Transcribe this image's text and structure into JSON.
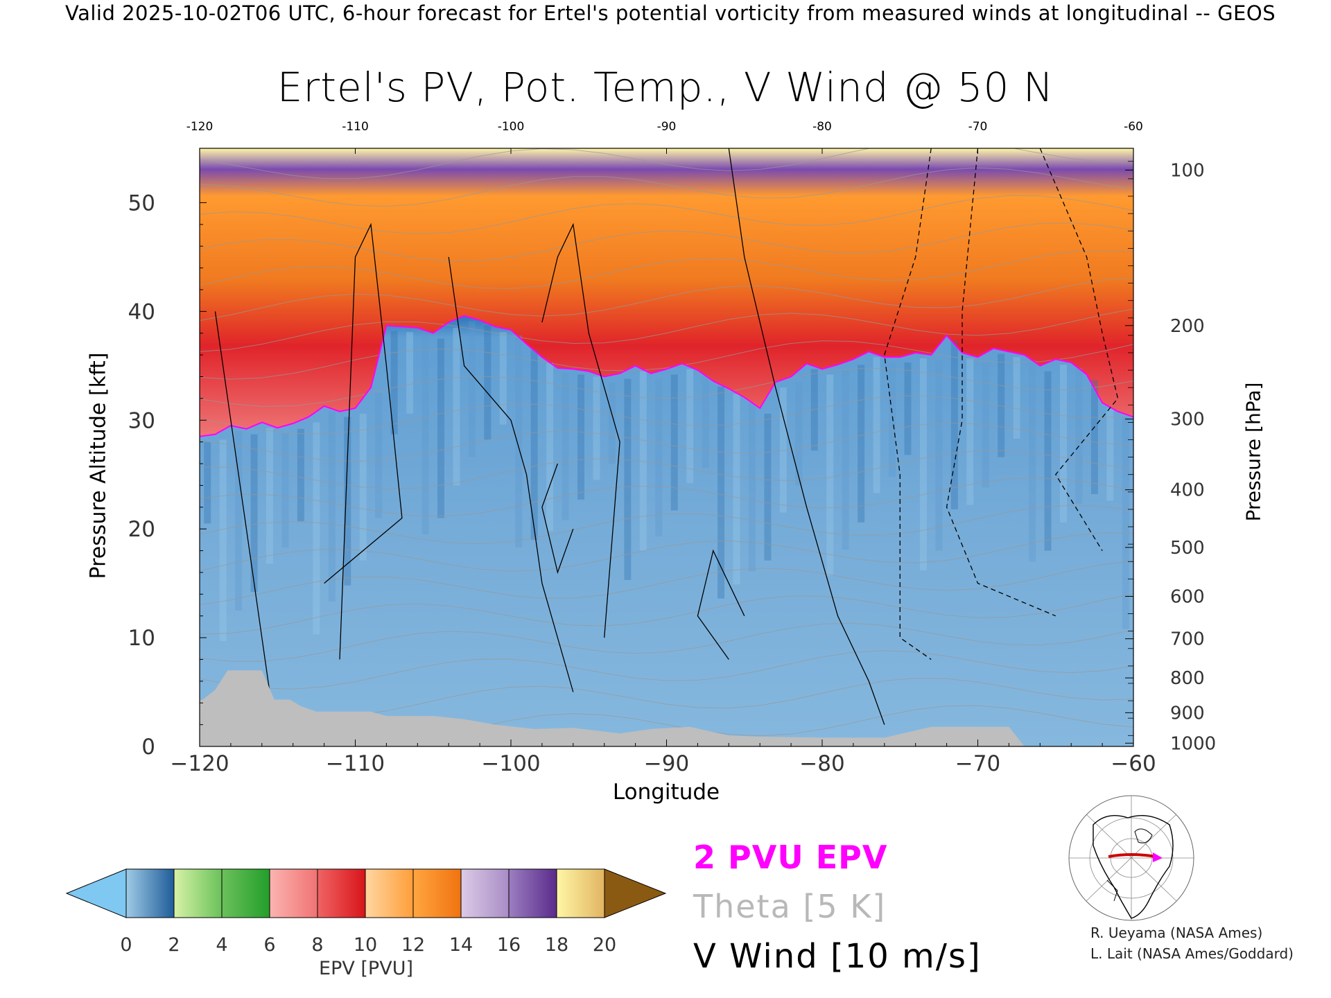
{
  "header": "Valid 2025-10-02T06 UTC, 6-hour forecast for Ertel's potential vorticity from measured winds at longitudinal -- GEOS",
  "title": "Ertel's PV, Pot. Temp., V Wind @ 50 N",
  "legend": {
    "epv_contour": "2 PVU EPV",
    "theta": "Theta [5 K]",
    "vwind": "V Wind [10 m/s]"
  },
  "credits": {
    "line1": "R. Ueyama (NASA Ames)",
    "line2": "L. Lait (NASA Ames/Goddard)"
  },
  "colors": {
    "epv_2pvu_contour": "#ff00ff",
    "theta_contour": "#b8b8b8",
    "vwind_contour": "#000000",
    "terrain": "#bebebe",
    "below_range": "#7ec8f2",
    "above_range": "#8b5a12"
  },
  "chart_data": {
    "type": "heatmap",
    "xlabel": "Longitude",
    "ylabel_left": "Pressure Altitude [kft]",
    "ylabel_right": "Pressure [hPa]",
    "xlim": [
      -120,
      -60
    ],
    "ylim": [
      0,
      55
    ],
    "x_ticks_bottom": [
      "−120",
      "−110",
      "−100",
      "−90",
      "−80",
      "−70",
      "−60"
    ],
    "x_ticks_top": [
      "-120",
      "-110",
      "-100",
      "-90",
      "-80",
      "-70",
      "-60"
    ],
    "y_ticks_left": [
      "0",
      "10",
      "20",
      "30",
      "40",
      "50"
    ],
    "pressure_ticks": [
      {
        "label": "100",
        "kft": 53
      },
      {
        "label": "200",
        "kft": 38.7
      },
      {
        "label": "300",
        "kft": 30.1
      },
      {
        "label": "400",
        "kft": 23.6
      },
      {
        "label": "500",
        "kft": 18.3
      },
      {
        "label": "600",
        "kft": 13.8
      },
      {
        "label": "700",
        "kft": 9.9
      },
      {
        "label": "800",
        "kft": 6.3
      },
      {
        "label": "900",
        "kft": 3.1
      },
      {
        "label": "1000",
        "kft": 0.3
      }
    ],
    "colorbar": {
      "label": "EPV [PVU]",
      "ticks": [
        "0",
        "2",
        "4",
        "6",
        "8",
        "10",
        "12",
        "14",
        "16",
        "18",
        "20"
      ],
      "bins": [
        {
          "from": 0,
          "to": 2,
          "colors": [
            "#9fcbe6",
            "#1f5c99"
          ]
        },
        {
          "from": 2,
          "to": 4,
          "colors": [
            "#d7f2a6",
            "#6ac25a"
          ]
        },
        {
          "from": 4,
          "to": 6,
          "colors": [
            "#6cc15b",
            "#229e2b"
          ]
        },
        {
          "from": 6,
          "to": 8,
          "colors": [
            "#fbb4b1",
            "#f07373"
          ]
        },
        {
          "from": 8,
          "to": 10,
          "colors": [
            "#f06464",
            "#d8141a"
          ]
        },
        {
          "from": 10,
          "to": 12,
          "colors": [
            "#ffd6a0",
            "#ff9e3a"
          ]
        },
        {
          "from": 12,
          "to": 14,
          "colors": [
            "#ffa640",
            "#f07310"
          ]
        },
        {
          "from": 14,
          "to": 16,
          "colors": [
            "#dccbe6",
            "#a98cc6"
          ]
        },
        {
          "from": 16,
          "to": 18,
          "colors": [
            "#9c7ec0",
            "#5a2b8c"
          ]
        },
        {
          "from": 18,
          "to": 20,
          "colors": [
            "#fff6a6",
            "#e1b461"
          ]
        }
      ]
    },
    "pv2_tropopause_kft": [
      [
        -120,
        28.5
      ],
      [
        -119,
        28.7
      ],
      [
        -118,
        29.5
      ],
      [
        -117,
        29.2
      ],
      [
        -116,
        29.8
      ],
      [
        -115,
        29.3
      ],
      [
        -114,
        29.7
      ],
      [
        -113,
        30.3
      ],
      [
        -112,
        31.3
      ],
      [
        -111,
        30.8
      ],
      [
        -110,
        31.1
      ],
      [
        -109,
        33.0
      ],
      [
        -108,
        38.7
      ],
      [
        -107,
        38.6
      ],
      [
        -106,
        38.5
      ],
      [
        -105,
        38.0
      ],
      [
        -104,
        39.0
      ],
      [
        -103,
        39.6
      ],
      [
        -102,
        39.2
      ],
      [
        -101,
        38.6
      ],
      [
        -100,
        38.3
      ],
      [
        -99,
        37.0
      ],
      [
        -98,
        35.8
      ],
      [
        -97,
        34.8
      ],
      [
        -96,
        34.7
      ],
      [
        -95,
        34.5
      ],
      [
        -94,
        34.0
      ],
      [
        -93,
        34.3
      ],
      [
        -92,
        35.0
      ],
      [
        -91,
        34.3
      ],
      [
        -90,
        34.7
      ],
      [
        -89,
        35.2
      ],
      [
        -88,
        34.6
      ],
      [
        -87,
        33.6
      ],
      [
        -86,
        32.9
      ],
      [
        -85,
        32.1
      ],
      [
        -84,
        31.1
      ],
      [
        -83,
        33.5
      ],
      [
        -82,
        34.0
      ],
      [
        -81,
        35.2
      ],
      [
        -80,
        34.7
      ],
      [
        -79,
        35.1
      ],
      [
        -78,
        35.6
      ],
      [
        -77,
        36.3
      ],
      [
        -76,
        35.8
      ],
      [
        -75,
        35.8
      ],
      [
        -74,
        36.2
      ],
      [
        -73,
        36.0
      ],
      [
        -72,
        37.8
      ],
      [
        -71,
        36.2
      ],
      [
        -70,
        35.8
      ],
      [
        -69,
        36.6
      ],
      [
        -68,
        36.3
      ],
      [
        -67,
        36.0
      ],
      [
        -66,
        35.0
      ],
      [
        -65,
        35.6
      ],
      [
        -64,
        35.3
      ],
      [
        -63,
        34.2
      ],
      [
        -62,
        31.6
      ],
      [
        -61,
        30.8
      ],
      [
        -60,
        30.3
      ]
    ],
    "terrain_kft": [
      [
        -120,
        4.3
      ],
      [
        -119.8,
        4.3
      ],
      [
        -119,
        5.2
      ],
      [
        -118.2,
        7.0
      ],
      [
        -116,
        7.0
      ],
      [
        -115.2,
        4.3
      ],
      [
        -114.2,
        4.3
      ],
      [
        -113.5,
        3.7
      ],
      [
        -112.5,
        3.2
      ],
      [
        -109,
        3.2
      ],
      [
        -108,
        2.8
      ],
      [
        -105,
        2.8
      ],
      [
        -103,
        2.5
      ],
      [
        -101,
        2.0
      ],
      [
        -98.5,
        1.6
      ],
      [
        -96,
        1.7
      ],
      [
        -93,
        1.2
      ],
      [
        -91,
        1.6
      ],
      [
        -88.5,
        1.8
      ],
      [
        -86,
        1.0
      ],
      [
        -84,
        0.9
      ],
      [
        -80,
        0.8
      ],
      [
        -76,
        0.8
      ],
      [
        -73,
        1.8
      ],
      [
        -68,
        1.8
      ],
      [
        -67,
        0
      ],
      [
        -60,
        0
      ]
    ]
  }
}
